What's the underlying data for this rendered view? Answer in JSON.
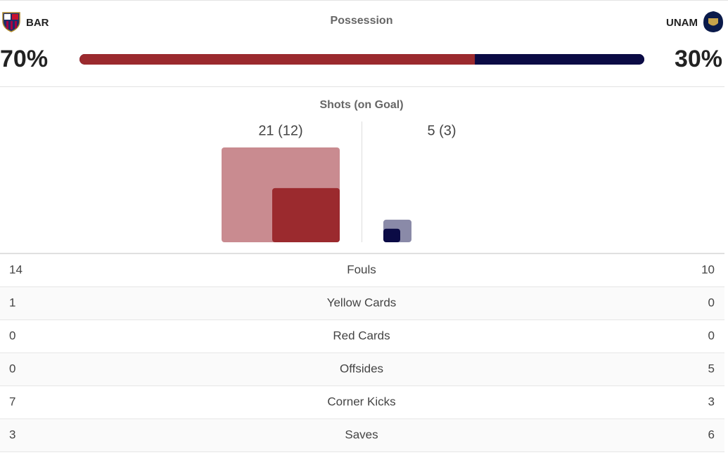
{
  "teams": {
    "home": {
      "abbr": "BAR"
    },
    "away": {
      "abbr": "UNAM"
    }
  },
  "possession": {
    "label": "Possession",
    "home": 70,
    "away": 30,
    "home_label": "70%",
    "away_label": "30%"
  },
  "shots": {
    "label": "Shots (on Goal)",
    "home": {
      "total": 21,
      "on_goal": 12,
      "text": "21 (12)"
    },
    "away": {
      "total": 5,
      "on_goal": 3,
      "text": "5 (3)"
    }
  },
  "stats": [
    {
      "name": "Fouls",
      "home": 14,
      "away": 10
    },
    {
      "name": "Yellow Cards",
      "home": 1,
      "away": 0
    },
    {
      "name": "Red Cards",
      "home": 0,
      "away": 0
    },
    {
      "name": "Offsides",
      "home": 0,
      "away": 5
    },
    {
      "name": "Corner Kicks",
      "home": 7,
      "away": 3
    },
    {
      "name": "Saves",
      "home": 3,
      "away": 6
    }
  ]
}
